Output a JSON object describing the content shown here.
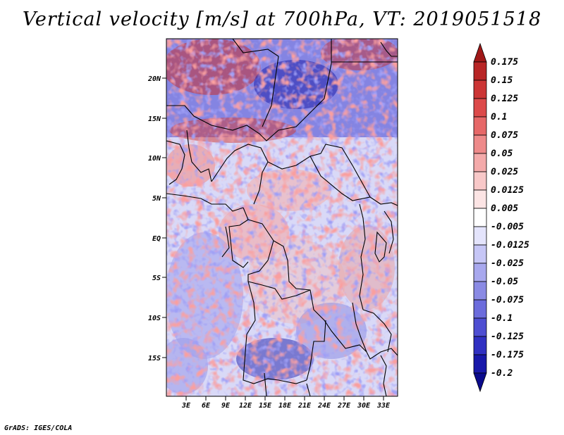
{
  "title": "Vertical velocity [m/s] at 700hPa, VT: 2019051518",
  "credit": "GrADS: IGES/COLA",
  "map": {
    "lat_labels": [
      "20N",
      "15N",
      "10N",
      "5N",
      "EQ",
      "5S",
      "10S",
      "15S"
    ],
    "lon_labels": [
      "3E",
      "6E",
      "9E",
      "12E",
      "15E",
      "18E",
      "21E",
      "24E",
      "27E",
      "30E",
      "33E"
    ]
  },
  "colorbar": {
    "labels": [
      "0.175",
      "0.15",
      "0.125",
      "0.1",
      "0.075",
      "0.05",
      "0.025",
      "0.0125",
      "0.005",
      "-0.005",
      "-0.0125",
      "-0.025",
      "-0.05",
      "-0.075",
      "-0.1",
      "-0.125",
      "-0.175",
      "-0.2"
    ],
    "colors": [
      "#a01818",
      "#b82525",
      "#cc3535",
      "#dc4a4a",
      "#e66868",
      "#ee8a8a",
      "#f4aaaa",
      "#f8c8c8",
      "#fce4e4",
      "#ffffff",
      "#e4e4fc",
      "#c6c6f6",
      "#a8a8ee",
      "#8a8ae4",
      "#6c6cdc",
      "#4e4ed2",
      "#3030c2",
      "#1818aa",
      "#0a0a8c"
    ]
  }
}
